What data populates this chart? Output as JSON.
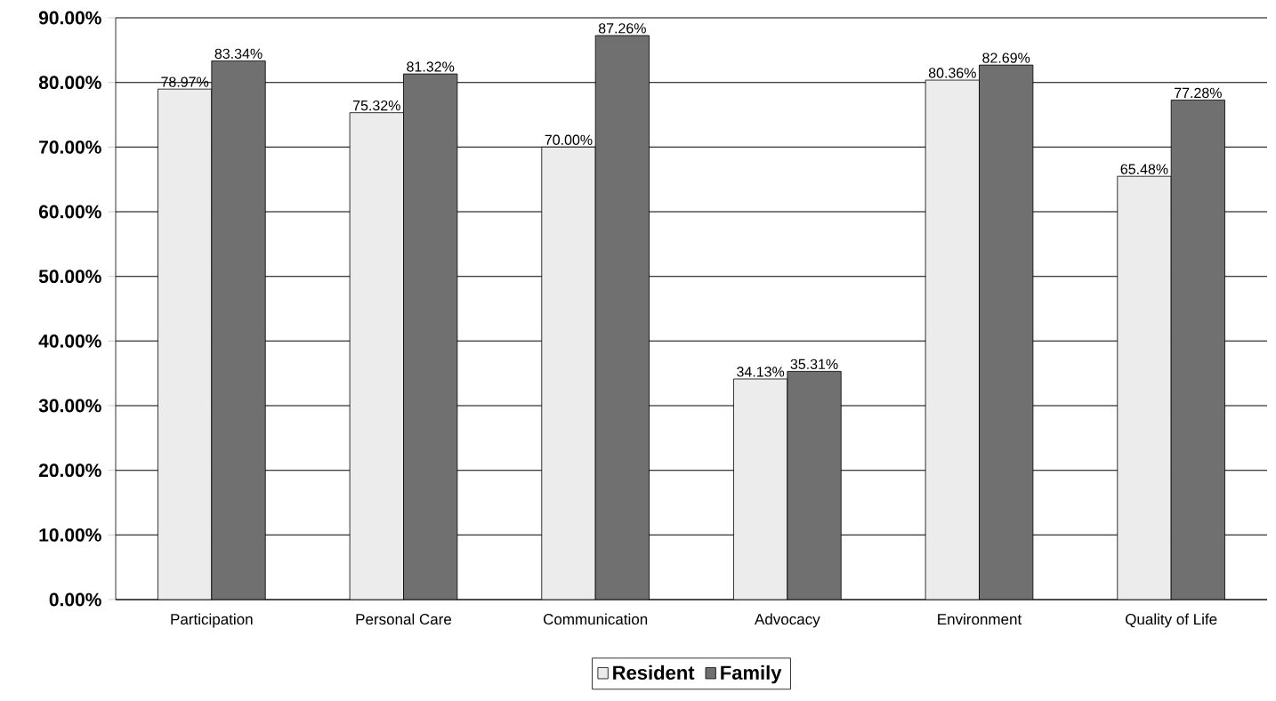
{
  "chart_data": {
    "type": "bar",
    "categories": [
      "Participation",
      "Personal Care",
      "Communication",
      "Advocacy",
      "Environment",
      "Quality of Life"
    ],
    "series": [
      {
        "name": "Resident",
        "color": "#ececec",
        "values": [
          78.97,
          75.32,
          70.0,
          34.13,
          80.36,
          65.48
        ],
        "value_labels": [
          "78.97%",
          "75.32%",
          "70.00%",
          "34.13%",
          "80.36%",
          "65.48%"
        ]
      },
      {
        "name": "Family",
        "color": "#707070",
        "values": [
          83.34,
          81.32,
          87.26,
          35.31,
          82.69,
          77.28
        ],
        "value_labels": [
          "83.34%",
          "81.32%",
          "87.26%",
          "35.31%",
          "82.69%",
          "77.28%"
        ]
      }
    ],
    "ylim": [
      0,
      90
    ],
    "yticks": [
      {
        "value": 0,
        "label": "0.00%"
      },
      {
        "value": 10,
        "label": "10.00%"
      },
      {
        "value": 20,
        "label": "20.00%"
      },
      {
        "value": 30,
        "label": "30.00%"
      },
      {
        "value": 40,
        "label": "40.00%"
      },
      {
        "value": 50,
        "label": "50.00%"
      },
      {
        "value": 60,
        "label": "60.00%"
      },
      {
        "value": 70,
        "label": "70.00%"
      },
      {
        "value": 80,
        "label": "80.00%"
      },
      {
        "value": 90,
        "label": "90.00%"
      }
    ],
    "grid": "y",
    "legend": "bottom"
  }
}
